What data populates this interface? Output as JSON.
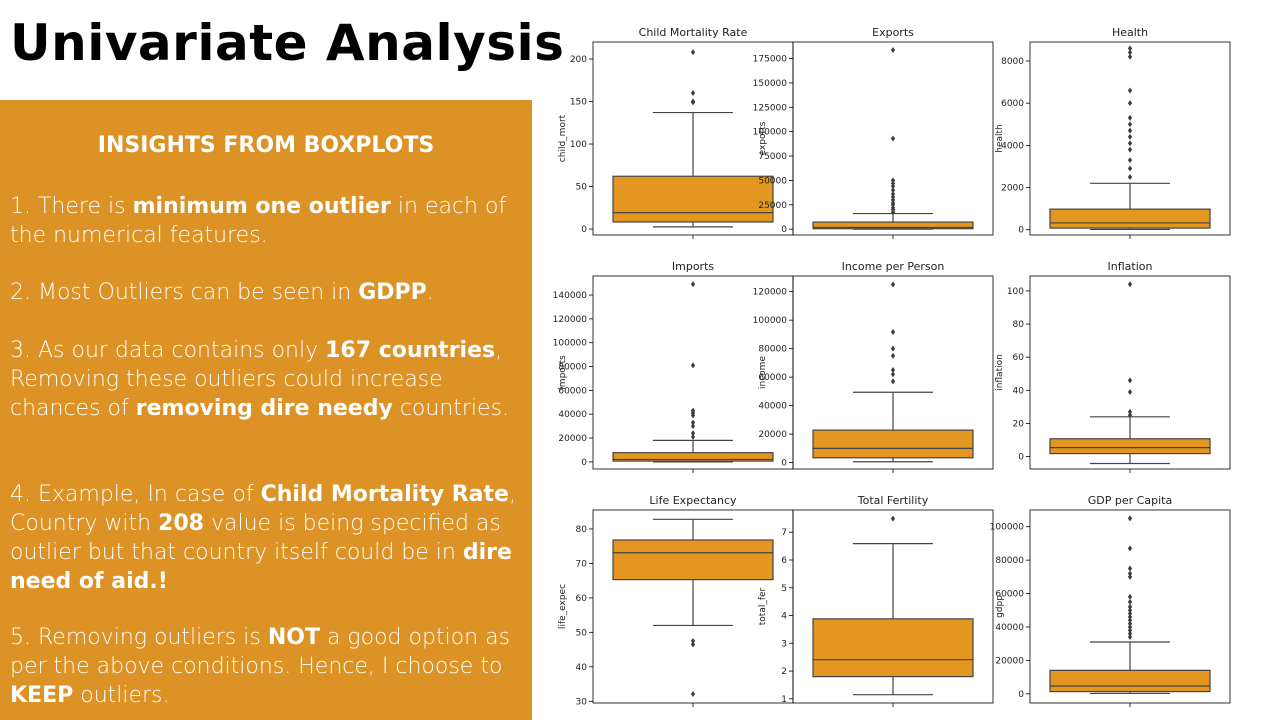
{
  "title": "Univariate Analysis",
  "panel": {
    "heading": "INSIGHTS FROM BOXPLOTS",
    "insights": [
      [
        {
          "t": "1. There is "
        },
        {
          "t": "minimum one outlier",
          "b": true
        },
        {
          "t": " in each of the numerical features."
        }
      ],
      [
        {
          "t": "2. Most Outliers can be seen in "
        },
        {
          "t": "GDPP",
          "b": true
        },
        {
          "t": "."
        }
      ],
      [
        {
          "t": "3. As our data contains only "
        },
        {
          "t": "167 countries",
          "b": true
        },
        {
          "t": ", Removing these outliers could increase chances of "
        },
        {
          "t": "removing dire needy",
          "b": true
        },
        {
          "t": " countries."
        }
      ],
      [
        {
          "t": "4. Example, In case of "
        },
        {
          "t": "Child Mortality Rate",
          "b": true
        },
        {
          "t": ", Country with "
        },
        {
          "t": "208",
          "b": true
        },
        {
          "t": " value is being specified as outlier but that country itself could be in "
        },
        {
          "t": "dire need of aid.!",
          "b": true
        }
      ],
      [
        {
          "t": "5. Removing outliers is "
        },
        {
          "t": "NOT",
          "b": true
        },
        {
          "t": " a good option as per the above conditions. Hence, I choose to "
        },
        {
          "t": "KEEP",
          "b": true
        },
        {
          "t": " outliers."
        }
      ]
    ]
  },
  "colors": {
    "panel_bg": "#dc9225",
    "box_fill": "#e39620",
    "box_edge": "#444444"
  },
  "chart_data": [
    {
      "type": "boxplot",
      "title": "Child Mortality Rate",
      "ylabel": "child_mort",
      "ylim": [
        -7,
        220
      ],
      "yticks": [
        0,
        50,
        100,
        150,
        200
      ],
      "tick_labels": [
        "0",
        "50",
        "100",
        "150",
        "200"
      ],
      "whisker_low": 2.6,
      "q1": 8.3,
      "median": 19.3,
      "q3": 62.1,
      "whisker_high": 137,
      "outliers": [
        149,
        150,
        160,
        208
      ]
    },
    {
      "type": "boxplot",
      "title": "Exports",
      "ylabel": "exports",
      "ylim": [
        -6000,
        192000
      ],
      "yticks": [
        0,
        25000,
        50000,
        75000,
        100000,
        125000,
        150000,
        175000
      ],
      "tick_labels": [
        "0",
        "25000",
        "50000",
        "75000",
        "100000",
        "125000",
        "150000",
        "175000"
      ],
      "whisker_low": 1,
      "q1": 448,
      "median": 1780,
      "q3": 7278,
      "whisker_high": 16000,
      "outliers": [
        17500,
        20000,
        22000,
        25000,
        27000,
        30000,
        33000,
        36000,
        40000,
        44000,
        47000,
        50000,
        93000,
        183750
      ]
    },
    {
      "type": "boxplot",
      "title": "Health",
      "ylabel": "health",
      "ylim": [
        -250,
        8900
      ],
      "yticks": [
        0,
        2000,
        4000,
        6000,
        8000
      ],
      "tick_labels": [
        "0",
        "2000",
        "4000",
        "6000",
        "8000"
      ],
      "whisker_low": 13,
      "q1": 78,
      "median": 321,
      "q3": 976,
      "whisker_high": 2200,
      "outliers": [
        2500,
        2900,
        3300,
        3800,
        4100,
        4400,
        4700,
        5000,
        5300,
        6000,
        6600,
        8200,
        8400,
        8600
      ]
    },
    {
      "type": "boxplot",
      "title": "Imports",
      "ylabel": "imports",
      "ylim": [
        -6000,
        156000
      ],
      "yticks": [
        0,
        20000,
        40000,
        60000,
        80000,
        100000,
        120000,
        140000
      ],
      "tick_labels": [
        "0",
        "20000",
        "40000",
        "60000",
        "80000",
        "100000",
        "120000",
        "140000"
      ],
      "whisker_low": 0.6,
      "q1": 640,
      "median": 2045,
      "q3": 7719,
      "whisker_high": 18000,
      "outliers": [
        21000,
        24000,
        30000,
        33000,
        39000,
        41000,
        43000,
        81000,
        149100
      ]
    },
    {
      "type": "boxplot",
      "title": "Income per Person",
      "ylabel": "income",
      "ylim": [
        -4500,
        131000
      ],
      "yticks": [
        0,
        20000,
        40000,
        60000,
        80000,
        100000,
        120000
      ],
      "tick_labels": [
        "0",
        "20000",
        "40000",
        "60000",
        "80000",
        "100000",
        "120000"
      ],
      "whisker_low": 609,
      "q1": 3355,
      "median": 9960,
      "q3": 22800,
      "whisker_high": 49400,
      "outliers": [
        57000,
        62000,
        65000,
        75000,
        80000,
        91700,
        125000
      ]
    },
    {
      "type": "boxplot",
      "title": "Inflation",
      "ylabel": "inflation",
      "ylim": [
        -7.5,
        109
      ],
      "yticks": [
        0,
        20,
        40,
        60,
        80,
        100
      ],
      "tick_labels": [
        "0",
        "20",
        "40",
        "60",
        "80",
        "100"
      ],
      "whisker_low": -4.2,
      "q1": 1.8,
      "median": 5.4,
      "q3": 10.75,
      "whisker_high": 24,
      "outliers": [
        25,
        27,
        39,
        46,
        104
      ]
    },
    {
      "type": "boxplot",
      "title": "Life Expectancy",
      "ylabel": "life_expec",
      "ylim": [
        29.5,
        85.5
      ],
      "yticks": [
        30,
        40,
        50,
        60,
        70,
        80
      ],
      "tick_labels": [
        "30",
        "40",
        "50",
        "60",
        "70",
        "80"
      ],
      "whisker_low": 52,
      "q1": 65.3,
      "median": 73.1,
      "q3": 76.8,
      "whisker_high": 82.8,
      "outliers": [
        47.5,
        46.5,
        32.1
      ]
    },
    {
      "type": "boxplot",
      "title": "Total Fertility",
      "ylabel": "total_fer",
      "ylim": [
        0.85,
        7.8
      ],
      "yticks": [
        1,
        2,
        3,
        4,
        5,
        6,
        7
      ],
      "tick_labels": [
        "1",
        "2",
        "3",
        "4",
        "5",
        "6",
        "7"
      ],
      "whisker_low": 1.15,
      "q1": 1.8,
      "median": 2.41,
      "q3": 3.88,
      "whisker_high": 6.59,
      "outliers": [
        7.49
      ]
    },
    {
      "type": "boxplot",
      "title": "GDP per Capita",
      "ylabel": "gdpp",
      "ylim": [
        -5500,
        110000
      ],
      "yticks": [
        0,
        20000,
        40000,
        60000,
        80000,
        100000
      ],
      "tick_labels": [
        "0",
        "20000",
        "40000",
        "60000",
        "80000",
        "100000"
      ],
      "whisker_low": 231,
      "q1": 1330,
      "median": 4660,
      "q3": 14050,
      "whisker_high": 31000,
      "outliers": [
        34000,
        36000,
        38000,
        40000,
        42000,
        44000,
        46000,
        48000,
        50000,
        52000,
        55000,
        58000,
        70000,
        72000,
        75000,
        87000,
        105000
      ]
    }
  ]
}
